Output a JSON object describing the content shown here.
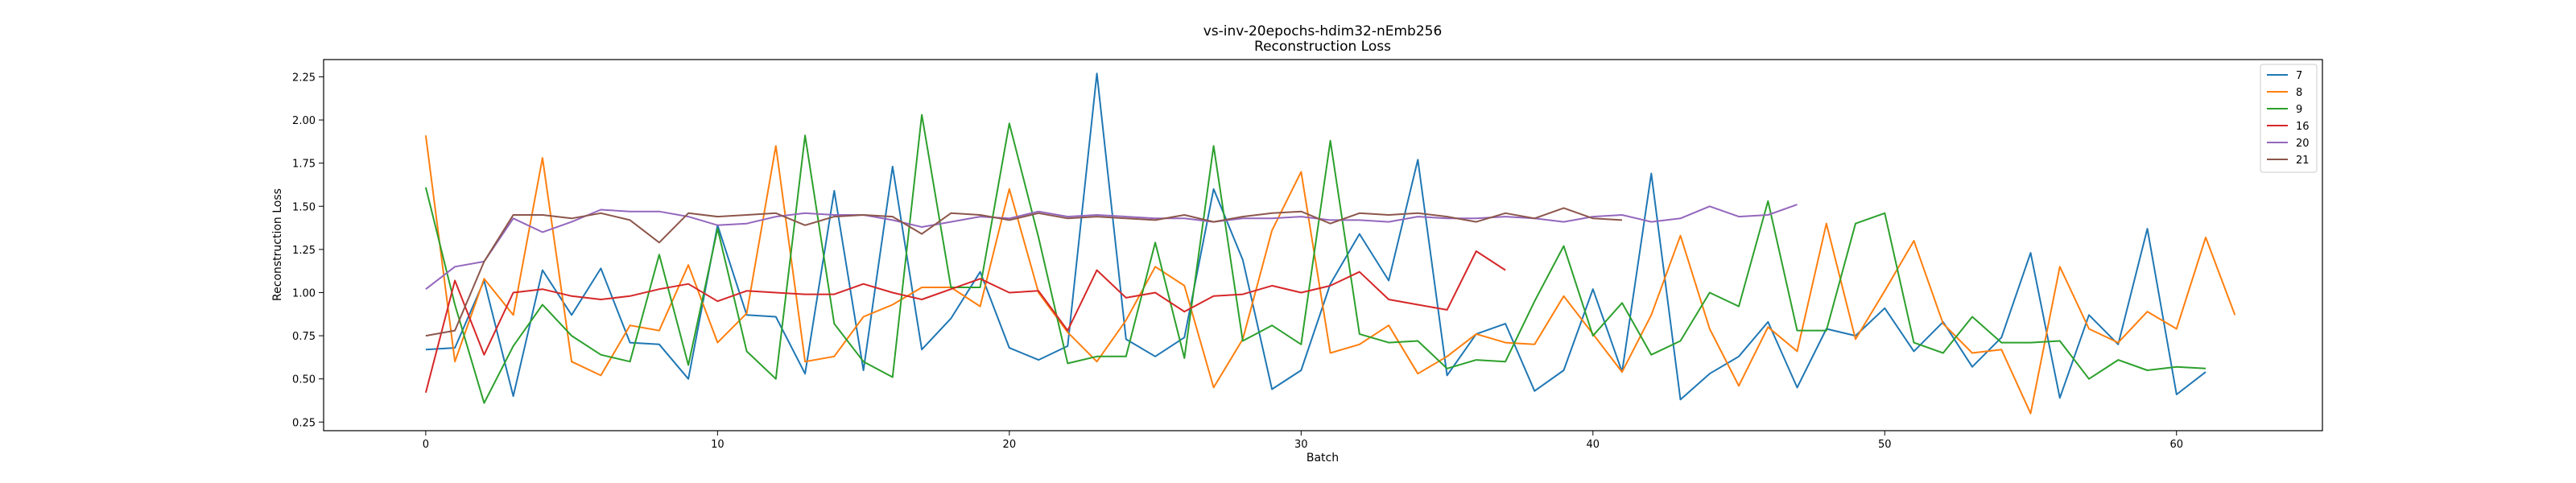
{
  "chart_data": {
    "type": "line",
    "title": "vs-inv-20epochs-hdim32-nEmb256",
    "subtitle": "Reconstruction Loss",
    "xlabel": "Batch",
    "ylabel": "Reconstruction Loss",
    "xlim": [
      -3.5,
      65
    ],
    "ylim": [
      0.2,
      2.35
    ],
    "xticks": [
      0,
      10,
      20,
      30,
      40,
      50,
      60
    ],
    "yticks": [
      0.25,
      0.5,
      0.75,
      1.0,
      1.25,
      1.5,
      1.75,
      2.0,
      2.25
    ],
    "ytick_labels": [
      "0.25",
      "0.50",
      "0.75",
      "1.00",
      "1.25",
      "1.50",
      "1.75",
      "2.00",
      "2.25"
    ],
    "grid": false,
    "legend_position": "top-right",
    "series": [
      {
        "name": "7",
        "color": "#1f77b4",
        "values": [
          0.67,
          0.68,
          1.07,
          0.4,
          1.13,
          0.87,
          1.14,
          0.71,
          0.7,
          0.5,
          1.39,
          0.87,
          0.86,
          0.53,
          1.59,
          0.55,
          1.73,
          0.67,
          0.85,
          1.12,
          0.68,
          0.61,
          0.69,
          2.27,
          0.73,
          0.63,
          0.74,
          1.6,
          1.19,
          0.44,
          0.55,
          1.05,
          1.34,
          1.07,
          1.77,
          0.52,
          0.76,
          0.82,
          0.43,
          0.55,
          1.02,
          0.54,
          1.69,
          0.38,
          0.53,
          0.63,
          0.83,
          0.45,
          0.79,
          0.75,
          0.91,
          0.66,
          0.83,
          0.57,
          0.74,
          1.23,
          0.39,
          0.87,
          0.7,
          1.37,
          0.41,
          0.54
        ]
      },
      {
        "name": "8",
        "color": "#ff7f0e",
        "values": [
          1.91,
          0.6,
          1.08,
          0.87,
          1.78,
          0.6,
          0.52,
          0.81,
          0.78,
          1.16,
          0.71,
          0.88,
          1.85,
          0.6,
          0.63,
          0.86,
          0.93,
          1.03,
          1.03,
          0.92,
          1.6,
          1.0,
          0.77,
          0.6,
          0.84,
          1.15,
          1.04,
          0.45,
          0.73,
          1.36,
          1.7,
          0.65,
          0.7,
          0.81,
          0.53,
          0.63,
          0.76,
          0.71,
          0.7,
          0.98,
          0.76,
          0.54,
          0.87,
          1.33,
          0.79,
          0.46,
          0.8,
          0.66,
          1.4,
          0.73,
          1.01,
          1.3,
          0.82,
          0.65,
          0.67,
          0.3,
          1.15,
          0.79,
          0.71,
          0.89,
          0.79,
          1.32,
          0.87
        ]
      },
      {
        "name": "9",
        "color": "#2ca02c",
        "values": [
          1.61,
          0.93,
          0.36,
          0.69,
          0.93,
          0.75,
          0.64,
          0.6,
          1.22,
          0.58,
          1.37,
          0.66,
          0.5,
          1.91,
          0.82,
          0.6,
          0.51,
          2.03,
          1.03,
          1.03,
          1.98,
          1.32,
          0.59,
          0.63,
          0.63,
          1.29,
          0.62,
          1.85,
          0.72,
          0.81,
          0.7,
          1.88,
          0.76,
          0.71,
          0.72,
          0.56,
          0.61,
          0.6,
          0.95,
          1.27,
          0.75,
          0.94,
          0.64,
          0.72,
          1.0,
          0.92,
          1.53,
          0.78,
          0.78,
          1.4,
          1.46,
          0.71,
          0.65,
          0.86,
          0.71,
          0.71,
          0.72,
          0.5,
          0.61,
          0.55,
          0.57,
          0.56
        ]
      },
      {
        "name": "16",
        "color": "#d62728",
        "values": [
          0.42,
          1.07,
          0.64,
          1.0,
          1.02,
          0.98,
          0.96,
          0.98,
          1.02,
          1.05,
          0.95,
          1.01,
          1.0,
          0.99,
          0.99,
          1.05,
          1.0,
          0.96,
          1.02,
          1.08,
          1.0,
          1.01,
          0.78,
          1.13,
          0.97,
          1.0,
          0.89,
          0.98,
          0.99,
          1.04,
          1.0,
          1.04,
          1.12,
          0.96,
          0.93,
          0.9,
          1.24,
          1.13
        ]
      },
      {
        "name": "20",
        "color": "#9467bd",
        "values": [
          1.02,
          1.15,
          1.18,
          1.43,
          1.35,
          1.41,
          1.48,
          1.47,
          1.47,
          1.44,
          1.39,
          1.4,
          1.44,
          1.46,
          1.45,
          1.45,
          1.42,
          1.38,
          1.41,
          1.44,
          1.43,
          1.47,
          1.44,
          1.45,
          1.44,
          1.43,
          1.43,
          1.41,
          1.43,
          1.43,
          1.44,
          1.42,
          1.42,
          1.41,
          1.44,
          1.43,
          1.43,
          1.44,
          1.43,
          1.41,
          1.44,
          1.45,
          1.41,
          1.43,
          1.5,
          1.44,
          1.45,
          1.51
        ]
      },
      {
        "name": "21",
        "color": "#8c564b",
        "values": [
          0.75,
          0.78,
          1.18,
          1.45,
          1.45,
          1.43,
          1.46,
          1.42,
          1.29,
          1.46,
          1.44,
          1.45,
          1.46,
          1.39,
          1.44,
          1.45,
          1.44,
          1.34,
          1.46,
          1.45,
          1.42,
          1.46,
          1.43,
          1.44,
          1.43,
          1.42,
          1.45,
          1.41,
          1.44,
          1.46,
          1.47,
          1.4,
          1.46,
          1.45,
          1.46,
          1.44,
          1.41,
          1.46,
          1.43,
          1.49,
          1.43,
          1.42
        ]
      }
    ]
  }
}
